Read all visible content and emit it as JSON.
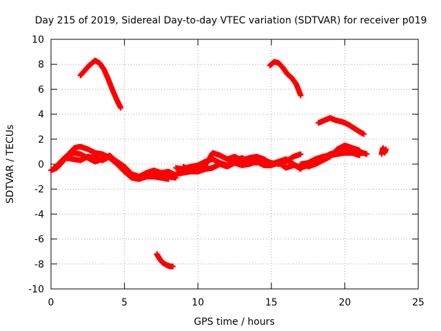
{
  "chart_data": {
    "type": "scatter",
    "title": "Day 215 of 2019, Sidereal Day-to-day VTEC variation (SDTVAR) for receiver p019",
    "xlabel": "GPS time / hours",
    "ylabel": "SDTVAR / TECUs",
    "xlim": [
      0,
      25
    ],
    "ylim": [
      -10,
      10
    ],
    "x_ticks": [
      0,
      5,
      10,
      15,
      20,
      25
    ],
    "y_ticks": [
      -10,
      -8,
      -6,
      -4,
      -2,
      0,
      2,
      4,
      6,
      8,
      10
    ],
    "x_tick_labels": [
      "0",
      "5",
      "10",
      "15",
      "20",
      "25"
    ],
    "y_tick_labels": [
      "-10",
      "-8",
      "-6",
      "-4",
      "-2",
      "0",
      "2",
      "4",
      "6",
      "8",
      "10"
    ],
    "grid": true,
    "marker_color": "#ff0000",
    "series": [
      {
        "name": "arc-upper-left",
        "x": [
          2.0,
          2.3,
          2.6,
          3.0,
          3.3,
          3.6,
          3.9,
          4.2,
          4.5,
          4.75
        ],
        "y": [
          7.1,
          7.5,
          7.9,
          8.3,
          8.1,
          7.6,
          6.8,
          5.9,
          5.1,
          4.5
        ]
      },
      {
        "name": "arc-upper-mid",
        "x": [
          14.9,
          15.2,
          15.5,
          15.8,
          16.1,
          16.4,
          16.7,
          17.0
        ],
        "y": [
          7.9,
          8.2,
          8.1,
          7.7,
          7.2,
          6.9,
          6.4,
          5.5
        ]
      },
      {
        "name": "arc-right",
        "x": [
          18.2,
          18.6,
          19.0,
          19.4,
          19.8,
          20.2,
          20.6,
          21.0,
          21.3
        ],
        "y": [
          3.3,
          3.5,
          3.7,
          3.5,
          3.4,
          3.2,
          2.9,
          2.6,
          2.4
        ]
      },
      {
        "name": "arc-small-right",
        "x": [
          22.5,
          22.6,
          22.7,
          22.8
        ],
        "y": [
          0.8,
          1.3,
          0.9,
          1.2
        ]
      },
      {
        "name": "arc-bottom",
        "x": [
          7.2,
          7.4,
          7.6,
          7.9,
          8.1,
          8.3
        ],
        "y": [
          -7.2,
          -7.6,
          -7.9,
          -8.1,
          -8.2,
          -8.2
        ]
      },
      {
        "name": "band-a",
        "x": [
          0.0,
          0.4,
          0.8,
          1.2,
          1.6,
          2.0,
          2.5,
          3.0,
          3.5,
          4.0,
          4.5,
          5.0,
          5.5,
          6.0,
          6.5,
          7.0,
          7.5,
          8.0,
          8.5
        ],
        "y": [
          -0.5,
          -0.3,
          0.2,
          0.8,
          1.3,
          1.4,
          1.2,
          0.9,
          0.8,
          0.5,
          0.0,
          -0.6,
          -0.9,
          -1.0,
          -0.9,
          -0.8,
          -0.9,
          -1.0,
          -1.1
        ]
      },
      {
        "name": "band-b",
        "x": [
          0.2,
          0.6,
          1.0,
          1.5,
          2.0,
          2.5,
          3.0,
          3.5,
          4.0,
          4.5,
          5.0,
          5.5,
          6.0,
          6.5,
          7.0,
          7.5,
          8.0,
          8.5
        ],
        "y": [
          -0.3,
          0.0,
          0.5,
          0.4,
          0.3,
          0.6,
          0.5,
          0.3,
          0.6,
          0.2,
          -0.2,
          -0.8,
          -1.0,
          -0.7,
          -0.5,
          -0.7,
          -0.6,
          -0.9
        ]
      },
      {
        "name": "band-c",
        "x": [
          0.5,
          1.0,
          1.5,
          2.0,
          2.5,
          3.0,
          3.5,
          4.0,
          4.5,
          5.0,
          5.5,
          6.0,
          6.5,
          7.0,
          7.5,
          8.0
        ],
        "y": [
          0.0,
          0.6,
          0.9,
          0.8,
          0.5,
          0.2,
          0.4,
          0.7,
          0.1,
          -0.6,
          -1.1,
          -1.2,
          -1.0,
          -1.0,
          -1.1,
          -1.2
        ]
      },
      {
        "name": "band-d",
        "x": [
          8.5,
          9.0,
          9.5,
          10.0,
          10.5,
          11.0,
          11.5,
          12.0,
          12.5,
          13.0,
          13.5,
          14.0,
          14.5,
          15.0,
          15.5,
          16.0,
          16.5,
          17.0
        ],
        "y": [
          -0.3,
          -0.4,
          -0.2,
          -0.1,
          0.2,
          0.4,
          0.1,
          -0.1,
          0.3,
          0.5,
          0.2,
          0.1,
          0.3,
          0.1,
          0.0,
          0.2,
          0.6,
          0.8
        ]
      },
      {
        "name": "band-e",
        "x": [
          8.5,
          9.0,
          9.5,
          10.0,
          10.5,
          11.0,
          11.5,
          12.0,
          12.5,
          13.0,
          13.5,
          14.0,
          14.5,
          15.0,
          15.5,
          16.0,
          16.5,
          17.0
        ],
        "y": [
          -0.8,
          -0.7,
          -0.6,
          -0.6,
          -0.4,
          -0.3,
          0.0,
          -0.2,
          0.1,
          -0.1,
          0.0,
          0.2,
          -0.1,
          -0.1,
          0.1,
          -0.3,
          -0.1,
          -0.2
        ]
      },
      {
        "name": "band-f",
        "x": [
          9.0,
          9.5,
          10.0,
          10.5,
          11.0,
          11.5,
          12.0,
          12.5,
          13.0,
          13.5,
          14.0,
          14.5,
          15.0,
          15.5,
          16.0,
          16.5,
          17.0
        ],
        "y": [
          -0.2,
          -0.5,
          -0.4,
          -0.1,
          0.9,
          0.7,
          0.4,
          0.6,
          0.3,
          0.5,
          0.6,
          0.4,
          0.0,
          0.2,
          0.4,
          0.0,
          -0.4
        ]
      },
      {
        "name": "band-g",
        "x": [
          17.0,
          17.5,
          18.0,
          18.5,
          19.0,
          19.5,
          20.0,
          20.5,
          21.0,
          21.5
        ],
        "y": [
          -0.3,
          -0.1,
          0.2,
          0.5,
          0.8,
          1.0,
          1.3,
          1.2,
          1.0,
          0.8
        ]
      },
      {
        "name": "band-h",
        "x": [
          17.0,
          17.5,
          18.0,
          18.5,
          19.0,
          19.5,
          20.0,
          20.5,
          21.0
        ],
        "y": [
          0.0,
          0.1,
          0.4,
          0.6,
          0.7,
          0.8,
          0.9,
          0.9,
          0.7
        ]
      },
      {
        "name": "band-i",
        "x": [
          17.5,
          18.0,
          18.5,
          19.0,
          19.5,
          20.0,
          20.5,
          21.0
        ],
        "y": [
          -0.2,
          0.0,
          0.3,
          0.6,
          1.2,
          1.5,
          1.3,
          1.1
        ]
      }
    ]
  }
}
